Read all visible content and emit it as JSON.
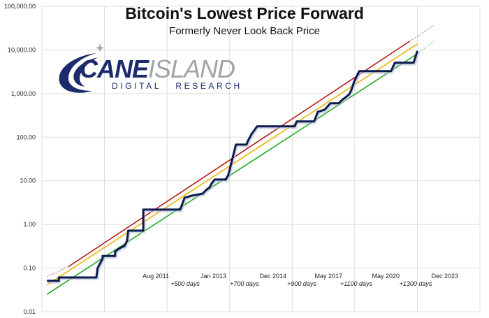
{
  "chart_data": {
    "type": "line",
    "title": "Bitcoin's Lowest Price Forward",
    "subtitle": "Formerly Never Look Back Price",
    "y_scale": "log",
    "ylim": [
      0.01,
      100000
    ],
    "y_ticks": [
      "100,000.00",
      "10,000.00",
      "1,000.00",
      "100.00",
      "10.00",
      "1.00",
      "0.10",
      "0.01"
    ],
    "y_tick_values": [
      100000,
      10000,
      1000,
      100,
      10,
      1,
      0.1,
      0.01
    ],
    "xlim": [
      0,
      7
    ],
    "x_gridlines": [
      1,
      2,
      3,
      4,
      5,
      6
    ],
    "x_date_labels": [
      "Aug 2011",
      "Jan 2013",
      "Dec 2014",
      "May 2017",
      "May 2020",
      "Dec 2023"
    ],
    "x_interval_labels": [
      "+500 days",
      "+700 days",
      "+900 days",
      "+1100 days",
      "+1300 days"
    ],
    "grid": true,
    "colors": {
      "price": "#0d1a4f",
      "upper": "#b31b1b",
      "middle": "#eab308",
      "lower": "#1faa22",
      "grid": "#dddddd"
    },
    "series": [
      {
        "id": "lowest-price-forward",
        "style": "step",
        "points": [
          [
            0.08,
            0.051
          ],
          [
            0.27,
            0.051
          ],
          [
            0.27,
            0.061
          ],
          [
            0.87,
            0.061
          ],
          [
            0.89,
            0.1
          ],
          [
            0.97,
            0.165
          ],
          [
            0.97,
            0.19
          ],
          [
            1.17,
            0.19
          ],
          [
            1.17,
            0.24
          ],
          [
            1.25,
            0.29
          ],
          [
            1.32,
            0.32
          ],
          [
            1.36,
            0.42
          ],
          [
            1.38,
            0.72
          ],
          [
            1.62,
            0.72
          ],
          [
            1.62,
            2.19
          ],
          [
            2.21,
            2.19
          ],
          [
            2.28,
            4.1
          ],
          [
            2.4,
            4.6
          ],
          [
            2.57,
            5.1
          ],
          [
            2.62,
            6.1
          ],
          [
            2.68,
            7.1
          ],
          [
            2.71,
            8.6
          ],
          [
            2.76,
            10.7
          ],
          [
            2.94,
            10.7
          ],
          [
            2.98,
            13.8
          ],
          [
            3.1,
            67.6
          ],
          [
            3.27,
            67.6
          ],
          [
            3.29,
            81
          ],
          [
            3.35,
            118
          ],
          [
            3.44,
            177
          ],
          [
            4.04,
            177
          ],
          [
            4.07,
            229
          ],
          [
            4.35,
            229
          ],
          [
            4.38,
            296
          ],
          [
            4.41,
            383
          ],
          [
            4.52,
            428
          ],
          [
            4.61,
            597
          ],
          [
            4.74,
            597
          ],
          [
            4.8,
            718
          ],
          [
            4.86,
            832
          ],
          [
            4.91,
            964
          ],
          [
            4.94,
            1159
          ],
          [
            4.99,
            1872
          ],
          [
            5.07,
            3258
          ],
          [
            5.58,
            3258
          ],
          [
            5.64,
            5070
          ],
          [
            5.94,
            5070
          ],
          [
            6.0,
            9500
          ]
        ]
      },
      {
        "id": "upper-trend",
        "dotted_start": [
          0.08,
          0.063
        ],
        "solid_start": [
          0.42,
          0.107
        ],
        "solid_end": [
          5.88,
          15900
        ],
        "dotted_end": [
          6.27,
          37200
        ]
      },
      {
        "id": "middle-trend",
        "solid_start": [
          0.08,
          0.041
        ],
        "solid_end": [
          6.0,
          13700
        ]
      },
      {
        "id": "lower-trend",
        "solid_start": [
          0.08,
          0.025
        ],
        "solid_end": [
          6.0,
          8180
        ],
        "dotted_end": [
          6.28,
          16500
        ]
      }
    ]
  },
  "logo": {
    "word1": "CANE",
    "word2": "ISLAND",
    "tagline": "DIGITAL   RESEARCH"
  }
}
